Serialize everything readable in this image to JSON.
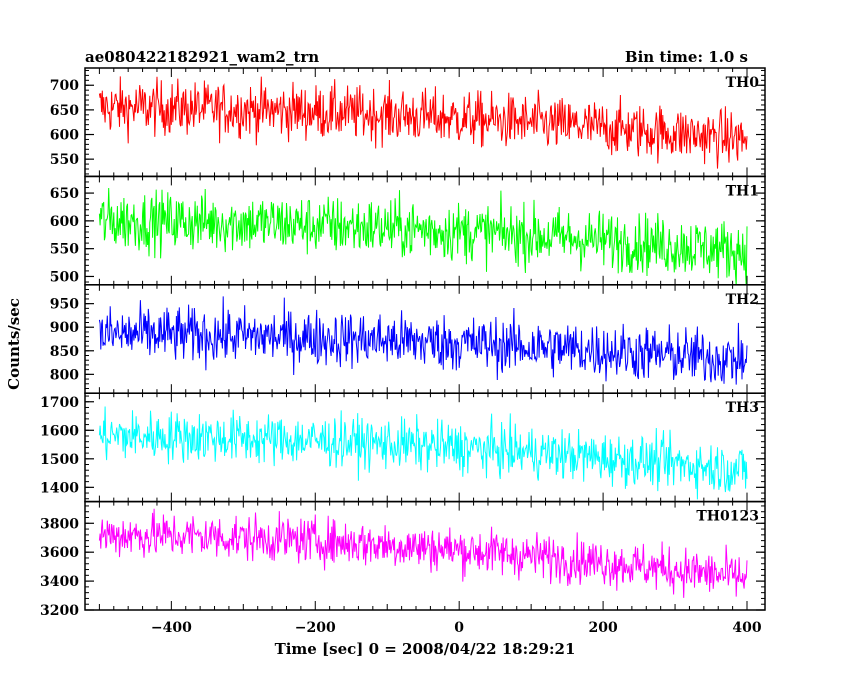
{
  "header": {
    "title": "ae080422182921_wam2_trn",
    "bin_time": "Bin time: 1.0 s"
  },
  "chart_data": {
    "type": "line",
    "title": "ae080422182921_wam2_trn",
    "xlabel": "Time [sec] 0 = 2008/04/22 18:29:21",
    "ylabel": "Counts/sec",
    "xlim": [
      -520,
      425
    ],
    "x_ticks": [
      -400,
      -200,
      0,
      200,
      400
    ],
    "x_tick_labels": [
      "−400",
      "−200",
      "0",
      "200",
      "400"
    ],
    "x_range": [
      -500,
      400
    ],
    "bin_time_s": 1.0,
    "grid": false,
    "panels": [
      {
        "name": "TH0",
        "color": "#ff0000",
        "ylim": [
          515,
          735
        ],
        "y_ticks": [
          550,
          600,
          650,
          700
        ],
        "mean_start": 655,
        "mean_end": 590,
        "noise_sd": 28
      },
      {
        "name": "TH1",
        "color": "#00ff00",
        "ylim": [
          485,
          680
        ],
        "y_ticks": [
          500,
          550,
          600,
          650
        ],
        "mean_start": 600,
        "mean_end": 545,
        "noise_sd": 27
      },
      {
        "name": "TH2",
        "color": "#0000ff",
        "ylim": [
          760,
          990
        ],
        "y_ticks": [
          800,
          850,
          900,
          950
        ],
        "mean_start": 885,
        "mean_end": 830,
        "noise_sd": 30
      },
      {
        "name": "TH3",
        "color": "#00ffff",
        "ylim": [
          1350,
          1730
        ],
        "y_ticks": [
          1400,
          1500,
          1600,
          1700
        ],
        "mean_start": 1580,
        "mean_end": 1460,
        "noise_sd": 45
      },
      {
        "name": "TH0123",
        "color": "#ff00ff",
        "ylim": [
          3200,
          3950
        ],
        "y_ticks": [
          3200,
          3400,
          3600,
          3800
        ],
        "mean_start": 3720,
        "mean_end": 3420,
        "noise_sd": 80
      }
    ]
  }
}
